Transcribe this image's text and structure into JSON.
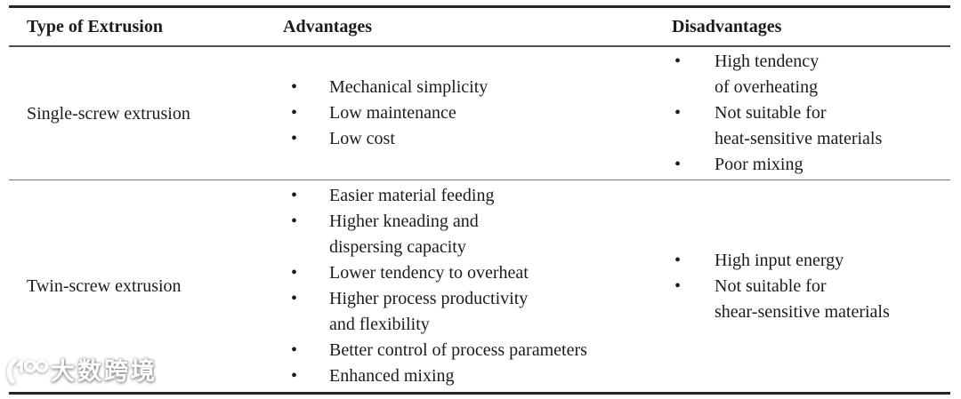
{
  "table": {
    "headers": {
      "type": "Type of Extrusion",
      "advantages": "Advantages",
      "disadvantages": "Disadvantages"
    },
    "rows": [
      {
        "type": "Single-screw extrusion",
        "advantages": [
          "Mechanical simplicity",
          "Low maintenance",
          "Low cost"
        ],
        "disadvantages": [
          "High tendency\nof overheating",
          "Not suitable for\nheat-sensitive materials",
          "Poor mixing"
        ]
      },
      {
        "type": "Twin-screw extrusion",
        "advantages": [
          "Easier material feeding",
          "Higher kneading and\ndispersing capacity",
          "Lower tendency to overheat",
          "Higher process productivity\nand flexibility",
          "Better control of process parameters",
          "Enhanced mixing"
        ],
        "disadvantages": [
          "High input energy",
          "Not suitable for\nshear-sensitive materials"
        ]
      }
    ]
  },
  "icons": {
    "bullet": "•"
  },
  "watermark": {
    "logo": "100",
    "text": "大数跨境"
  },
  "colors": {
    "rule_thick": "#262626",
    "rule_header": "#4d4d4d",
    "rule_mid": "#757575",
    "text": "#1b1b1b",
    "watermark": "#ffffff"
  }
}
